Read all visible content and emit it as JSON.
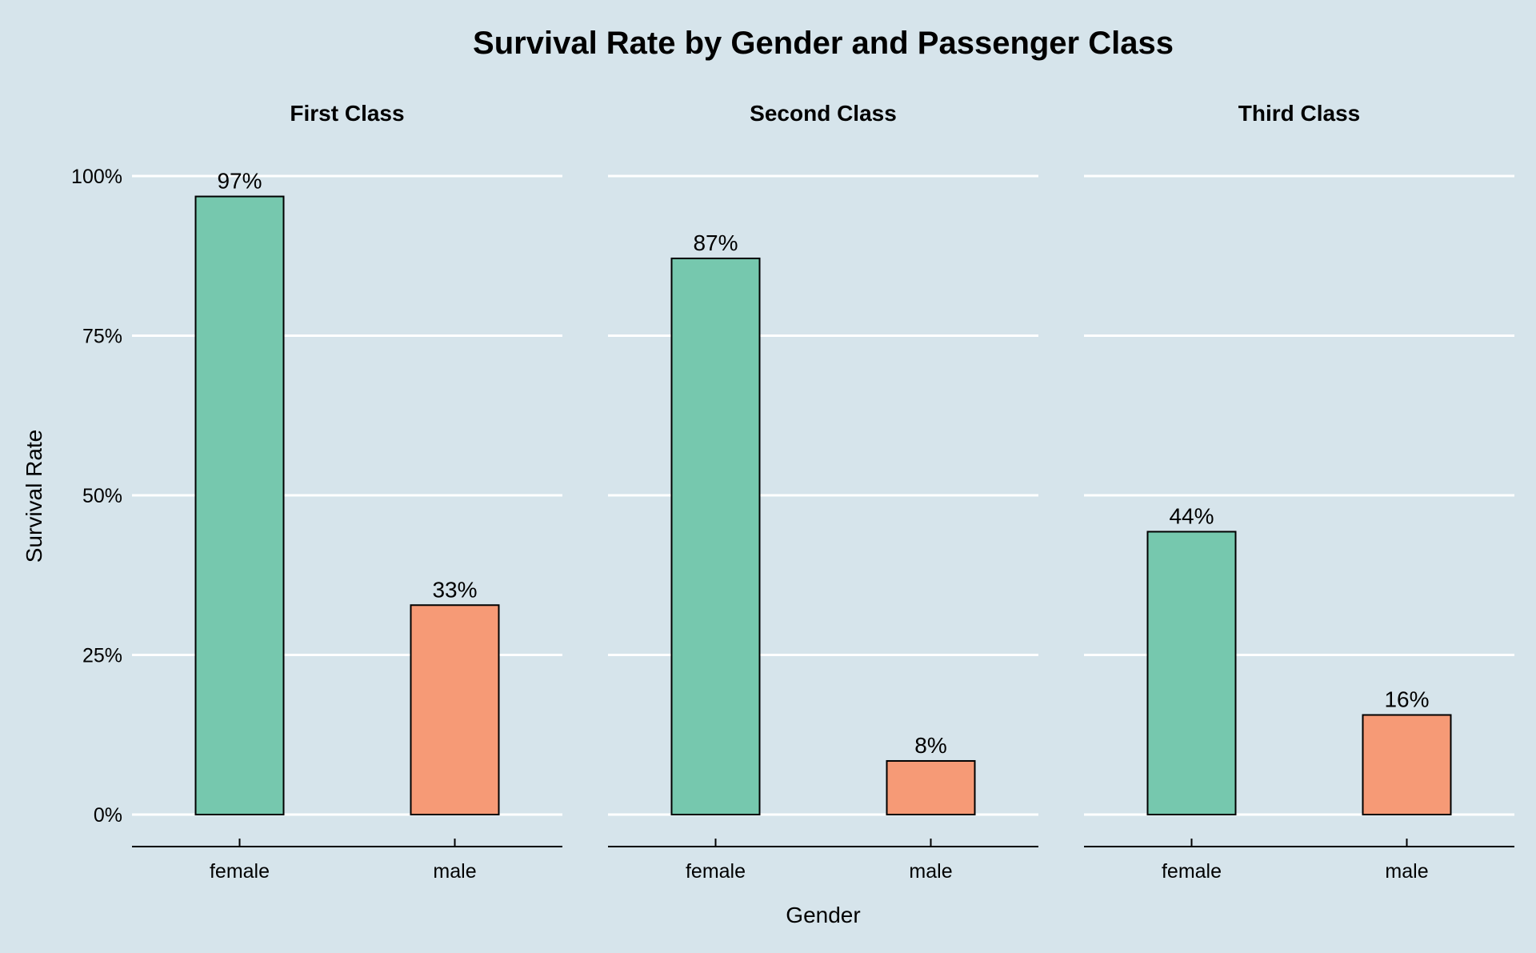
{
  "chart_data": {
    "type": "bar",
    "title": "Survival Rate by Gender and Passenger Class",
    "xlabel": "Gender",
    "ylabel": "Survival Rate",
    "ylim": [
      0,
      1
    ],
    "y_ticks": [
      {
        "value": 0,
        "label": "0%"
      },
      {
        "value": 0.25,
        "label": "25%"
      },
      {
        "value": 0.5,
        "label": "50%"
      },
      {
        "value": 0.75,
        "label": "75%"
      },
      {
        "value": 1.0,
        "label": "100%"
      }
    ],
    "categories": [
      "female",
      "male"
    ],
    "colors": {
      "female": "#76c8ae",
      "male": "#f69a76",
      "background": "#d6e4eb",
      "grid": "#ffffff",
      "axis": "#000000"
    },
    "grid": true,
    "legend": "none",
    "facets": [
      {
        "title": "First Class",
        "values": [
          0.968,
          0.328
        ],
        "labels": [
          "97%",
          "33%"
        ]
      },
      {
        "title": "Second Class",
        "values": [
          0.871,
          0.084
        ],
        "labels": [
          "87%",
          "8%"
        ]
      },
      {
        "title": "Third Class",
        "values": [
          0.443,
          0.156
        ],
        "labels": [
          "44%",
          "16%"
        ]
      }
    ]
  }
}
